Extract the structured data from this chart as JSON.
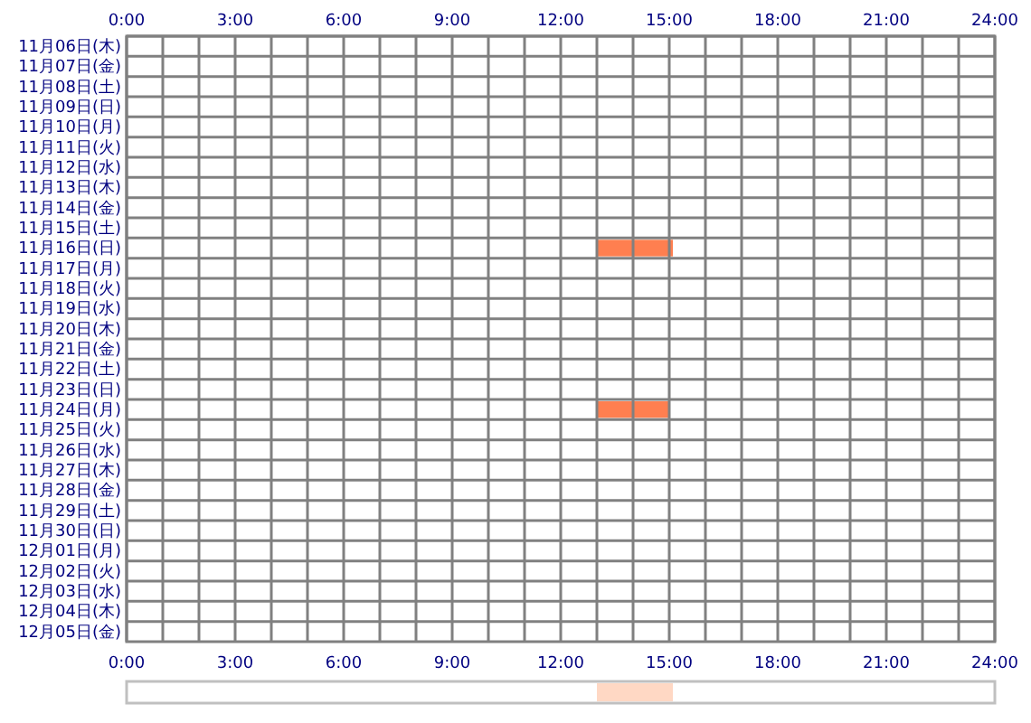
{
  "chart_data": [
    {
      "type": "bar",
      "orientation": "horizontal",
      "categories": [
        "11月06日(木)",
        "11月07日(金)",
        "11月08日(土)",
        "11月09日(日)",
        "11月10日(月)",
        "11月11日(火)",
        "11月12日(水)",
        "11月13日(木)",
        "11月14日(金)",
        "11月15日(土)",
        "11月16日(日)",
        "11月17日(月)",
        "11月18日(火)",
        "11月19日(水)",
        "11月20日(木)",
        "11月21日(金)",
        "11月22日(土)",
        "11月23日(日)",
        "11月24日(月)",
        "11月25日(火)",
        "11月26日(水)",
        "11月27日(木)",
        "11月28日(金)",
        "11月29日(土)",
        "11月30日(日)",
        "12月01日(月)",
        "12月02日(火)",
        "12月03日(水)",
        "12月04日(木)",
        "12月05日(金)"
      ],
      "base": [
        null,
        null,
        null,
        null,
        null,
        null,
        null,
        null,
        null,
        null,
        13,
        null,
        null,
        null,
        null,
        null,
        null,
        null,
        13,
        null,
        null,
        null,
        null,
        null,
        null,
        null,
        null,
        null,
        null,
        null
      ],
      "values": [
        null,
        null,
        null,
        null,
        null,
        null,
        null,
        null,
        null,
        null,
        2.1,
        null,
        null,
        null,
        null,
        null,
        null,
        null,
        2.0,
        null,
        null,
        null,
        null,
        null,
        null,
        null,
        null,
        null,
        null,
        null
      ],
      "color": "#ff7f50",
      "xlim": [
        0,
        24
      ],
      "xticks": [
        {
          "value": 0,
          "label": "0:00"
        },
        {
          "value": 1,
          "label": null
        },
        {
          "value": 2,
          "label": null
        },
        {
          "value": 3,
          "label": "3:00"
        },
        {
          "value": 4,
          "label": null
        },
        {
          "value": 5,
          "label": null
        },
        {
          "value": 6,
          "label": "6:00"
        },
        {
          "value": 7,
          "label": null
        },
        {
          "value": 8,
          "label": null
        },
        {
          "value": 9,
          "label": "9:00"
        },
        {
          "value": 10,
          "label": null
        },
        {
          "value": 11,
          "label": null
        },
        {
          "value": 12,
          "label": "12:00"
        },
        {
          "value": 13,
          "label": null
        },
        {
          "value": 14,
          "label": null
        },
        {
          "value": 15,
          "label": "15:00"
        },
        {
          "value": 16,
          "label": null
        },
        {
          "value": 17,
          "label": null
        },
        {
          "value": 18,
          "label": "18:00"
        },
        {
          "value": 19,
          "label": null
        },
        {
          "value": 20,
          "label": null
        },
        {
          "value": 21,
          "label": "21:00"
        },
        {
          "value": 22,
          "label": null
        },
        {
          "value": 23,
          "label": null
        },
        {
          "value": 24,
          "label": "24:00"
        }
      ],
      "x2lim": [
        0,
        24
      ],
      "x2ticks": [
        {
          "value": 0,
          "label": "0:00"
        },
        {
          "value": 3,
          "label": "3:00"
        },
        {
          "value": 6,
          "label": "6:00"
        },
        {
          "value": 9,
          "label": "9:00"
        },
        {
          "value": 12,
          "label": "12:00"
        },
        {
          "value": 15,
          "label": "15:00"
        },
        {
          "value": 18,
          "label": "18:00"
        },
        {
          "value": 21,
          "label": "21:00"
        },
        {
          "value": 24,
          "label": "24:00"
        }
      ],
      "grid": true
    },
    {
      "type": "bar",
      "orientation": "horizontal",
      "categories": [
        null
      ],
      "base": [
        13
      ],
      "values": [
        2.1
      ],
      "color": "#ffd8c4",
      "xlim": [
        0,
        24
      ],
      "grid": false
    }
  ]
}
